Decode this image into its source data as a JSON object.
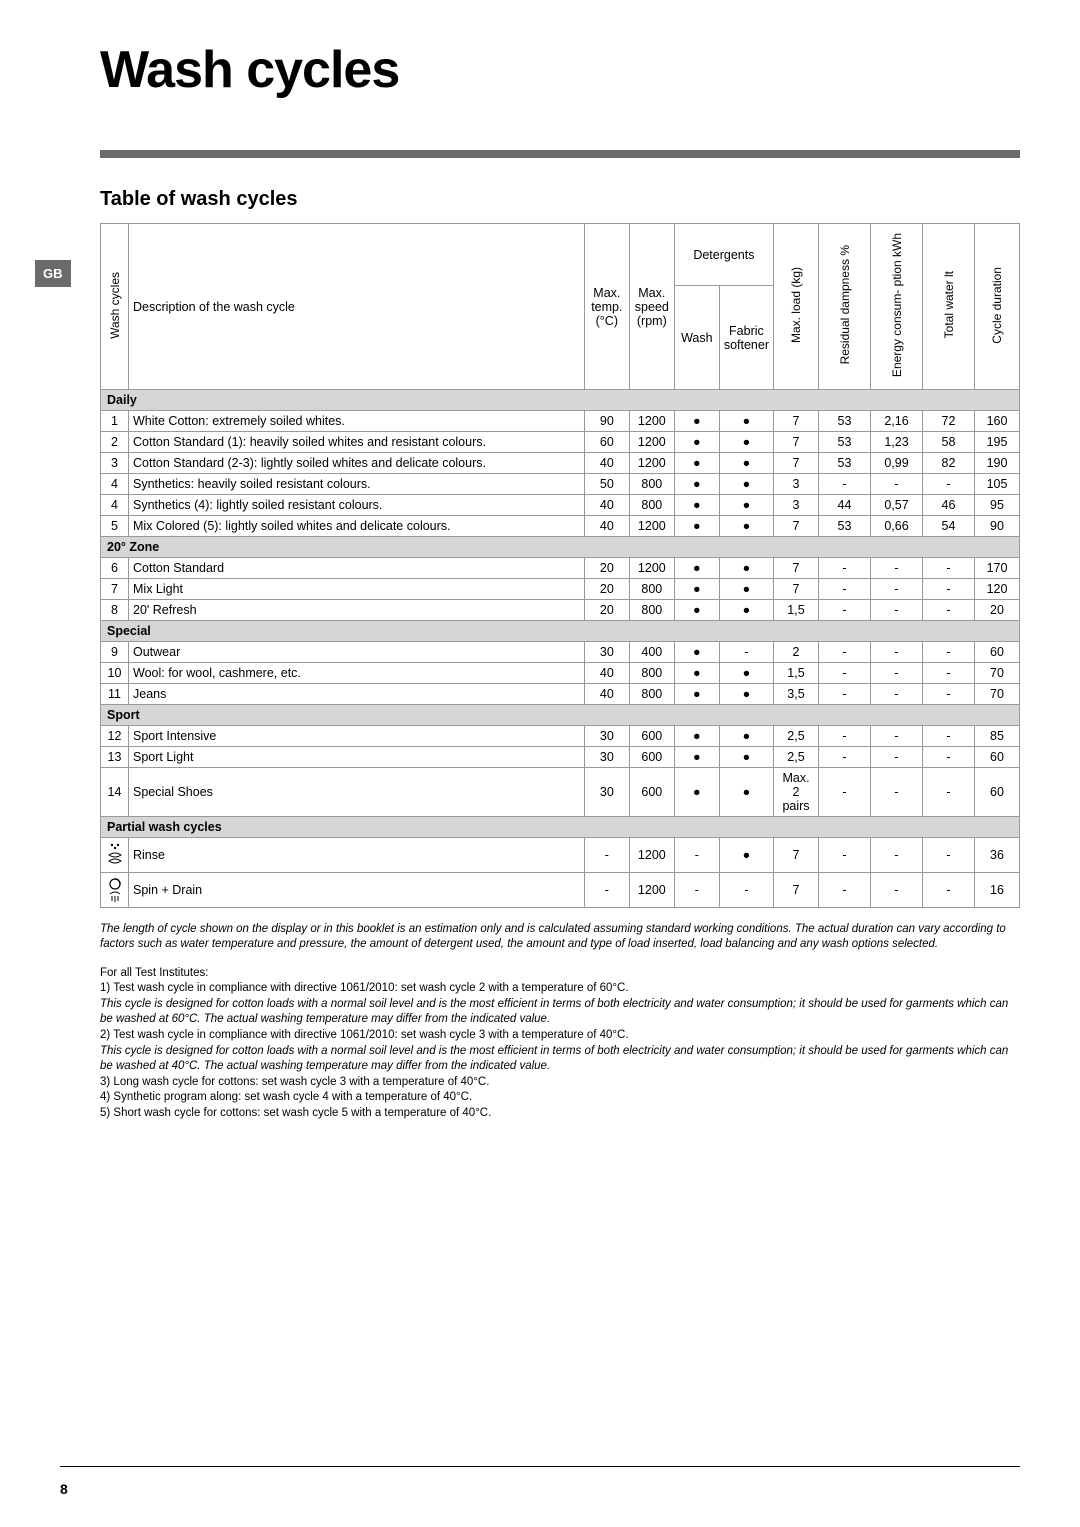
{
  "lang_tab": "GB",
  "title": "Wash cycles",
  "subtitle": "Table of wash cycles",
  "page_number": "8",
  "headers": {
    "wash_cycles": "Wash cycles",
    "description": "Description of the wash cycle",
    "max_temp": "Max. temp. (°C)",
    "max_speed": "Max. speed (rpm)",
    "detergents": "Detergents",
    "wash": "Wash",
    "fabric_softener": "Fabric softener",
    "max_load": "Max. load (kg)",
    "residual": "Residual dampness %",
    "energy": "Energy consum- ption kWh",
    "water": "Total water lt",
    "duration": "Cycle duration"
  },
  "sections": [
    {
      "label": "Daily",
      "rows": [
        {
          "n": "1",
          "desc": "White Cotton: extremely soiled whites.",
          "temp": "90",
          "rpm": "1200",
          "wash": "●",
          "soft": "●",
          "load": "7",
          "res": "53",
          "en": "2,16",
          "wat": "72",
          "dur": "160"
        },
        {
          "n": "2",
          "desc": "Cotton Standard (1): heavily soiled whites and resistant colours.",
          "temp": "60",
          "rpm": "1200",
          "wash": "●",
          "soft": "●",
          "load": "7",
          "res": "53",
          "en": "1,23",
          "wat": "58",
          "dur": "195"
        },
        {
          "n": "3",
          "desc": "Cotton Standard (2-3): lightly soiled whites and delicate colours.",
          "temp": "40",
          "rpm": "1200",
          "wash": "●",
          "soft": "●",
          "load": "7",
          "res": "53",
          "en": "0,99",
          "wat": "82",
          "dur": "190"
        },
        {
          "n": "4",
          "desc": "Synthetics: heavily soiled resistant colours.",
          "temp": "50",
          "rpm": "800",
          "wash": "●",
          "soft": "●",
          "load": "3",
          "res": "-",
          "en": "-",
          "wat": "-",
          "dur": "105"
        },
        {
          "n": "4",
          "desc": "Synthetics (4): lightly soiled resistant colours.",
          "temp": "40",
          "rpm": "800",
          "wash": "●",
          "soft": "●",
          "load": "3",
          "res": "44",
          "en": "0,57",
          "wat": "46",
          "dur": "95"
        },
        {
          "n": "5",
          "desc": "Mix Colored (5): lightly soiled whites and delicate colours.",
          "temp": "40",
          "rpm": "1200",
          "wash": "●",
          "soft": "●",
          "load": "7",
          "res": "53",
          "en": "0,66",
          "wat": "54",
          "dur": "90"
        }
      ]
    },
    {
      "label": "20° Zone",
      "rows": [
        {
          "n": "6",
          "desc": "Cotton Standard",
          "temp": "20",
          "rpm": "1200",
          "wash": "●",
          "soft": "●",
          "load": "7",
          "res": "-",
          "en": "-",
          "wat": "-",
          "dur": "170"
        },
        {
          "n": "7",
          "desc": "Mix Light",
          "temp": "20",
          "rpm": "800",
          "wash": "●",
          "soft": "●",
          "load": "7",
          "res": "-",
          "en": "-",
          "wat": "-",
          "dur": "120"
        },
        {
          "n": "8",
          "desc": "20' Refresh",
          "temp": "20",
          "rpm": "800",
          "wash": "●",
          "soft": "●",
          "load": "1,5",
          "res": "-",
          "en": "-",
          "wat": "-",
          "dur": "20"
        }
      ]
    },
    {
      "label": "Special",
      "rows": [
        {
          "n": "9",
          "desc": "Outwear",
          "temp": "30",
          "rpm": "400",
          "wash": "●",
          "soft": "-",
          "load": "2",
          "res": "-",
          "en": "-",
          "wat": "-",
          "dur": "60"
        },
        {
          "n": "10",
          "desc": "Wool: for wool, cashmere, etc.",
          "temp": "40",
          "rpm": "800",
          "wash": "●",
          "soft": "●",
          "load": "1,5",
          "res": "-",
          "en": "-",
          "wat": "-",
          "dur": "70"
        },
        {
          "n": "11",
          "desc": "Jeans",
          "temp": "40",
          "rpm": "800",
          "wash": "●",
          "soft": "●",
          "load": "3,5",
          "res": "-",
          "en": "-",
          "wat": "-",
          "dur": "70"
        }
      ]
    },
    {
      "label": "Sport",
      "rows": [
        {
          "n": "12",
          "desc": "Sport Intensive",
          "temp": "30",
          "rpm": "600",
          "wash": "●",
          "soft": "●",
          "load": "2,5",
          "res": "-",
          "en": "-",
          "wat": "-",
          "dur": "85"
        },
        {
          "n": "13",
          "desc": "Sport Light",
          "temp": "30",
          "rpm": "600",
          "wash": "●",
          "soft": "●",
          "load": "2,5",
          "res": "-",
          "en": "-",
          "wat": "-",
          "dur": "60"
        },
        {
          "n": "14",
          "desc": "Special Shoes",
          "temp": "30",
          "rpm": "600",
          "wash": "●",
          "soft": "●",
          "load": "Max. 2 pairs",
          "res": "-",
          "en": "-",
          "wat": "-",
          "dur": "60"
        }
      ]
    },
    {
      "label": "Partial wash cycles",
      "rows": [
        {
          "n": "icon-rinse",
          "desc": "Rinse",
          "temp": "-",
          "rpm": "1200",
          "wash": "-",
          "soft": "●",
          "load": "7",
          "res": "-",
          "en": "-",
          "wat": "-",
          "dur": "36"
        },
        {
          "n": "icon-spin",
          "desc": "Spin + Drain",
          "temp": "-",
          "rpm": "1200",
          "wash": "-",
          "soft": "-",
          "load": "7",
          "res": "-",
          "en": "-",
          "wat": "-",
          "dur": "16"
        }
      ]
    }
  ],
  "notes_italic": "The length of cycle shown on the display or in this booklet is an estimation only and is calculated assuming standard working conditions. The actual duration can vary according to factors such as water temperature and pressure, the amount of detergent used, the amount and type of load inserted, load balancing and any wash options selected.",
  "institutes_title": "For all Test Institutes:",
  "institutes": [
    {
      "n": "1) Test wash cycle in compliance with directive 1061/2010: set wash cycle 2 with a temperature of 60°C.",
      "it": "This cycle is designed for cotton loads with a normal soil level and is the most efficient in terms of both electricity and water consumption; it should be used for garments which can be washed at 60°C. The actual washing temperature may differ from the indicated value."
    },
    {
      "n": "2) Test wash cycle in compliance with directive 1061/2010: set wash cycle 3 with a temperature of 40°C.",
      "it": "This cycle is designed for cotton loads with a normal soil level and is the most efficient in terms of both electricity and water consumption; it should be used for garments which can be washed at 40°C. The actual washing temperature may differ from the indicated value."
    },
    {
      "n": "3) Long wash cycle for cottons: set wash cycle 3 with a temperature of 40°C.",
      "it": ""
    },
    {
      "n": "4) Synthetic program along: set wash cycle 4 with a temperature of 40°C.",
      "it": ""
    },
    {
      "n": "5) Short wash cycle for cottons: set wash cycle 5 with a temperature of 40°C.",
      "it": ""
    }
  ]
}
